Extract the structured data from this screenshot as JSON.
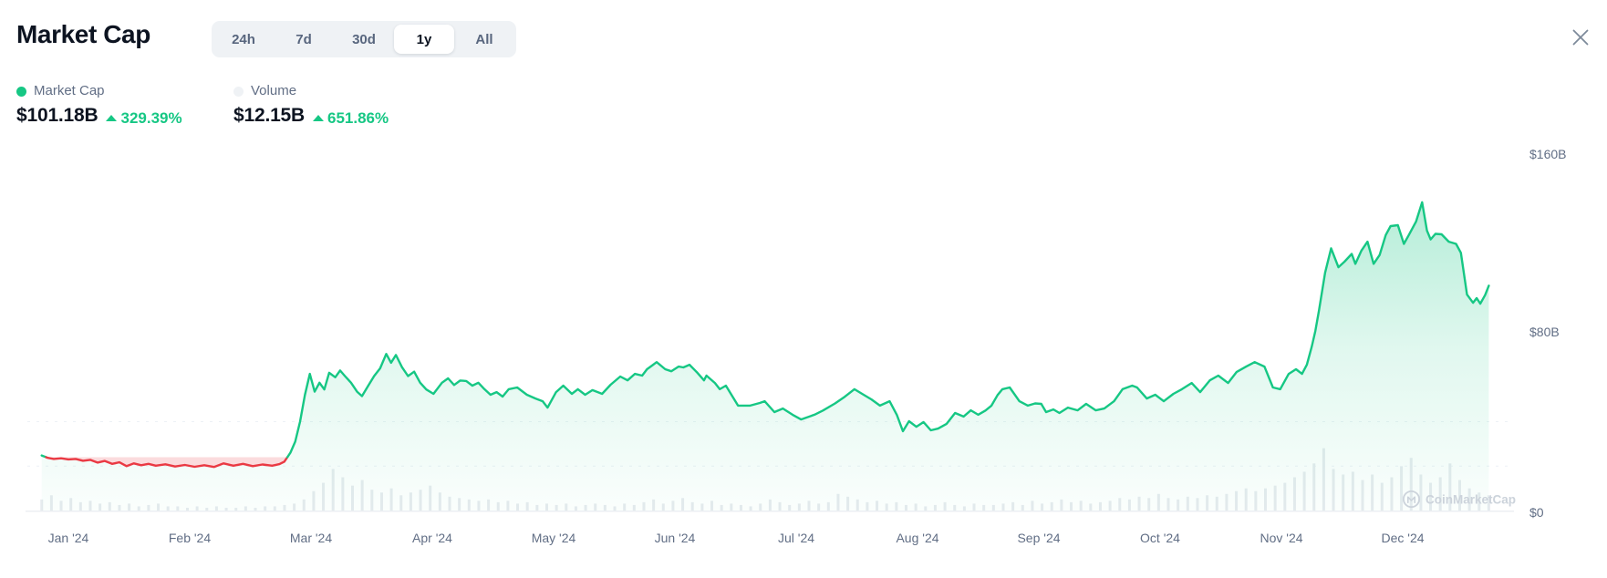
{
  "header": {
    "title": "Market Cap"
  },
  "range_tabs": {
    "options": [
      "24h",
      "7d",
      "30d",
      "1y",
      "All"
    ],
    "selected": "1y"
  },
  "legend": [
    {
      "name": "Market Cap",
      "value": "$101.18B",
      "change": "329.39%",
      "direction": "up",
      "dot_color": "#16c784"
    },
    {
      "name": "Volume",
      "value": "$12.15B",
      "change": "651.86%",
      "direction": "up",
      "dot_color": "#eff2f5"
    }
  ],
  "watermark": {
    "text": "CoinMarketCap",
    "icon": "coinmarketcap-logo"
  },
  "colors": {
    "advance": "#16c784",
    "decline": "#ea3943",
    "decline_fill": "rgba(234,57,67,0.18)",
    "area_fill_top": "rgba(22,199,132,0.38)",
    "area_fill_bottom": "rgba(22,199,132,0.02)",
    "volume_bar": "#e7ebef",
    "gridline": "#edf1f5",
    "axis_line": "#eceff3",
    "watermark": "#ccd3db",
    "text_primary": "#0d1421",
    "text_secondary": "#616e85",
    "close_icon": "#7d8a9a"
  },
  "chart_data": {
    "type": "area",
    "title": "Market Cap (1y)",
    "unit": "USD billions",
    "x_axis": {
      "labels": [
        "Jan '24",
        "Feb '24",
        "Mar '24",
        "Apr '24",
        "May '24",
        "Jun '24",
        "Jul '24",
        "Aug '24",
        "Sep '24",
        "Oct '24",
        "Nov '24",
        "Dec '24"
      ]
    },
    "y_axis": {
      "labels": [
        "$160B",
        "$80B",
        "$0"
      ],
      "min": 0,
      "max": 160
    },
    "grid": "faint-dashed-horizontal",
    "legend_position": "top-left",
    "baseline_value_b": 24.0,
    "gridline_values_b": [
      20,
      40
    ],
    "current_market_cap_b": 101.18,
    "current_volume_b": 12.15,
    "series": [
      {
        "name": "Market Cap",
        "type": "line-area",
        "note": "points are [months_from_jan1_2024, value_in_billions]; line renders red below baseline_value_b",
        "points": [
          [
            -0.22,
            24.8
          ],
          [
            -0.17,
            23.7
          ],
          [
            -0.12,
            23.2
          ],
          [
            -0.06,
            23.5
          ],
          [
            0,
            23
          ],
          [
            0.06,
            23.2
          ],
          [
            0.12,
            22.4
          ],
          [
            0.18,
            22.8
          ],
          [
            0.24,
            21.6
          ],
          [
            0.3,
            22.3
          ],
          [
            0.36,
            21
          ],
          [
            0.42,
            21.7
          ],
          [
            0.48,
            20
          ],
          [
            0.54,
            21.2
          ],
          [
            0.6,
            20.4
          ],
          [
            0.66,
            21
          ],
          [
            0.72,
            20.2
          ],
          [
            0.8,
            20.8
          ],
          [
            0.88,
            19.8
          ],
          [
            0.96,
            20.5
          ],
          [
            1.04,
            19.7
          ],
          [
            1.12,
            20.4
          ],
          [
            1.2,
            19.6
          ],
          [
            1.28,
            21.2
          ],
          [
            1.36,
            20.2
          ],
          [
            1.44,
            21
          ],
          [
            1.52,
            20
          ],
          [
            1.6,
            20.7
          ],
          [
            1.68,
            20.2
          ],
          [
            1.74,
            20.9
          ],
          [
            1.78,
            22
          ],
          [
            1.83,
            26
          ],
          [
            1.87,
            31
          ],
          [
            1.91,
            40
          ],
          [
            1.95,
            52
          ],
          [
            1.99,
            61.5
          ],
          [
            2.03,
            53.5
          ],
          [
            2.07,
            57.5
          ],
          [
            2.11,
            54.5
          ],
          [
            2.15,
            62
          ],
          [
            2.2,
            60
          ],
          [
            2.24,
            63
          ],
          [
            2.28,
            60.5
          ],
          [
            2.33,
            57.5
          ],
          [
            2.38,
            53.5
          ],
          [
            2.42,
            51.5
          ],
          [
            2.47,
            56
          ],
          [
            2.52,
            60.5
          ],
          [
            2.57,
            64
          ],
          [
            2.62,
            70.5
          ],
          [
            2.66,
            66.5
          ],
          [
            2.7,
            70
          ],
          [
            2.75,
            64.5
          ],
          [
            2.8,
            60.5
          ],
          [
            2.85,
            62.5
          ],
          [
            2.9,
            57.5
          ],
          [
            2.95,
            54.5
          ],
          [
            3.01,
            52.5
          ],
          [
            3.08,
            57.5
          ],
          [
            3.13,
            59.5
          ],
          [
            3.18,
            56.5
          ],
          [
            3.23,
            58.5
          ],
          [
            3.28,
            58.3
          ],
          [
            3.33,
            56.2
          ],
          [
            3.38,
            57.5
          ],
          [
            3.43,
            54.6
          ],
          [
            3.48,
            52.1
          ],
          [
            3.53,
            53.3
          ],
          [
            3.58,
            51.3
          ],
          [
            3.63,
            54.6
          ],
          [
            3.7,
            55.4
          ],
          [
            3.78,
            52.1
          ],
          [
            3.85,
            50.4
          ],
          [
            3.91,
            49.2
          ],
          [
            3.95,
            46.3
          ],
          [
            4.02,
            53.3
          ],
          [
            4.08,
            56.2
          ],
          [
            4.15,
            52.5
          ],
          [
            4.2,
            54.6
          ],
          [
            4.26,
            52.1
          ],
          [
            4.32,
            54.2
          ],
          [
            4.4,
            52.5
          ],
          [
            4.47,
            56.6
          ],
          [
            4.55,
            60.3
          ],
          [
            4.61,
            58.6
          ],
          [
            4.67,
            61.5
          ],
          [
            4.73,
            60.7
          ],
          [
            4.77,
            63.6
          ],
          [
            4.82,
            65.6
          ],
          [
            4.85,
            66.8
          ],
          [
            4.92,
            63.6
          ],
          [
            4.97,
            62.7
          ],
          [
            5.03,
            64.8
          ],
          [
            5.07,
            64.4
          ],
          [
            5.12,
            65.6
          ],
          [
            5.18,
            62.3
          ],
          [
            5.24,
            58.6
          ],
          [
            5.26,
            60.7
          ],
          [
            5.33,
            57.4
          ],
          [
            5.37,
            54.6
          ],
          [
            5.42,
            56.2
          ],
          [
            5.52,
            47.2
          ],
          [
            5.62,
            47.2
          ],
          [
            5.7,
            48.4
          ],
          [
            5.74,
            49.2
          ],
          [
            5.82,
            44.3
          ],
          [
            5.89,
            45.9
          ],
          [
            5.97,
            43.1
          ],
          [
            6.04,
            41
          ],
          [
            6.15,
            43.1
          ],
          [
            6.22,
            45
          ],
          [
            6.32,
            48.2
          ],
          [
            6.4,
            51.2
          ],
          [
            6.48,
            54.6
          ],
          [
            6.55,
            52.3
          ],
          [
            6.62,
            50
          ],
          [
            6.69,
            47.2
          ],
          [
            6.77,
            49.2
          ],
          [
            6.83,
            43
          ],
          [
            6.88,
            35.7
          ],
          [
            6.93,
            40.2
          ],
          [
            6.99,
            37.7
          ],
          [
            7.05,
            39.8
          ],
          [
            7.11,
            36.1
          ],
          [
            7.17,
            36.9
          ],
          [
            7.24,
            39
          ],
          [
            7.31,
            43.9
          ],
          [
            7.38,
            42.3
          ],
          [
            7.44,
            45.1
          ],
          [
            7.5,
            43.1
          ],
          [
            7.56,
            45
          ],
          [
            7.61,
            47.2
          ],
          [
            7.66,
            52
          ],
          [
            7.7,
            54.6
          ],
          [
            7.76,
            55.4
          ],
          [
            7.84,
            49.2
          ],
          [
            7.91,
            47.2
          ],
          [
            7.97,
            48.2
          ],
          [
            8.02,
            48
          ],
          [
            8.06,
            44.3
          ],
          [
            8.12,
            45.5
          ],
          [
            8.17,
            43.9
          ],
          [
            8.24,
            46.3
          ],
          [
            8.32,
            45.1
          ],
          [
            8.39,
            48
          ],
          [
            8.47,
            45.1
          ],
          [
            8.54,
            45.9
          ],
          [
            8.62,
            49.2
          ],
          [
            8.69,
            54.6
          ],
          [
            8.77,
            56.2
          ],
          [
            8.81,
            55.4
          ],
          [
            8.89,
            50.4
          ],
          [
            8.96,
            52.1
          ],
          [
            9.03,
            49.2
          ],
          [
            9.11,
            52.5
          ],
          [
            9.18,
            54.6
          ],
          [
            9.26,
            57.4
          ],
          [
            9.33,
            53.3
          ],
          [
            9.41,
            58.6
          ],
          [
            9.48,
            60.7
          ],
          [
            9.56,
            57.4
          ],
          [
            9.63,
            62.3
          ],
          [
            9.71,
            64.8
          ],
          [
            9.78,
            66.8
          ],
          [
            9.86,
            64.8
          ],
          [
            9.93,
            55.4
          ],
          [
            9.99,
            54.6
          ],
          [
            10.06,
            61.5
          ],
          [
            10.12,
            63.6
          ],
          [
            10.17,
            61.5
          ],
          [
            10.21,
            65.6
          ],
          [
            10.25,
            73.8
          ],
          [
            10.28,
            80.8
          ],
          [
            10.31,
            90
          ],
          [
            10.36,
            107
          ],
          [
            10.41,
            118
          ],
          [
            10.47,
            109.5
          ],
          [
            10.52,
            112
          ],
          [
            10.58,
            115.5
          ],
          [
            10.61,
            111
          ],
          [
            10.66,
            117
          ],
          [
            10.71,
            121
          ],
          [
            10.76,
            111
          ],
          [
            10.81,
            115
          ],
          [
            10.86,
            124
          ],
          [
            10.9,
            128
          ],
          [
            10.96,
            128.4
          ],
          [
            11.01,
            120
          ],
          [
            11.05,
            124
          ],
          [
            11.11,
            130
          ],
          [
            11.16,
            138.7
          ],
          [
            11.2,
            126
          ],
          [
            11.23,
            122
          ],
          [
            11.27,
            124.5
          ],
          [
            11.32,
            124.3
          ],
          [
            11.38,
            121
          ],
          [
            11.44,
            120
          ],
          [
            11.48,
            116
          ],
          [
            11.53,
            97.2
          ],
          [
            11.58,
            93.5
          ],
          [
            11.61,
            95.6
          ],
          [
            11.64,
            93.1
          ],
          [
            11.68,
            97
          ],
          [
            11.71,
            101.18
          ]
        ]
      },
      {
        "name": "Volume",
        "type": "bar",
        "note": "150 evenly spaced bars over same time span, heights in billions (own scale)",
        "start_month": -0.22,
        "end_month": 11.71,
        "values_b": [
          8,
          11,
          7,
          9,
          6,
          7,
          5,
          6,
          4,
          5,
          3,
          4,
          5,
          3,
          3,
          2,
          3,
          2,
          3,
          2,
          2,
          3,
          2,
          3,
          3,
          4,
          5,
          8,
          14,
          20,
          30,
          24,
          18,
          22,
          15,
          13,
          16,
          11,
          13,
          15,
          18,
          13,
          10,
          9,
          8,
          7,
          8,
          6,
          7,
          5,
          6,
          4,
          5,
          4,
          5,
          3,
          4,
          5,
          4,
          3,
          5,
          4,
          6,
          8,
          5,
          7,
          9,
          6,
          5,
          7,
          4,
          5,
          4,
          3,
          5,
          8,
          6,
          4,
          5,
          7,
          5,
          6,
          12,
          10,
          8,
          6,
          7,
          5,
          6,
          4,
          5,
          3,
          4,
          6,
          4,
          3,
          5,
          4,
          4,
          5,
          6,
          4,
          7,
          5,
          6,
          8,
          6,
          7,
          5,
          6,
          7,
          9,
          8,
          10,
          9,
          12,
          9,
          8,
          10,
          9,
          11,
          10,
          12,
          14,
          16,
          14,
          16,
          18,
          20,
          24,
          28,
          34,
          45,
          30,
          26,
          28,
          22,
          26,
          20,
          24,
          32,
          38,
          26,
          20,
          24,
          34,
          22,
          16,
          13,
          11
        ]
      }
    ]
  }
}
